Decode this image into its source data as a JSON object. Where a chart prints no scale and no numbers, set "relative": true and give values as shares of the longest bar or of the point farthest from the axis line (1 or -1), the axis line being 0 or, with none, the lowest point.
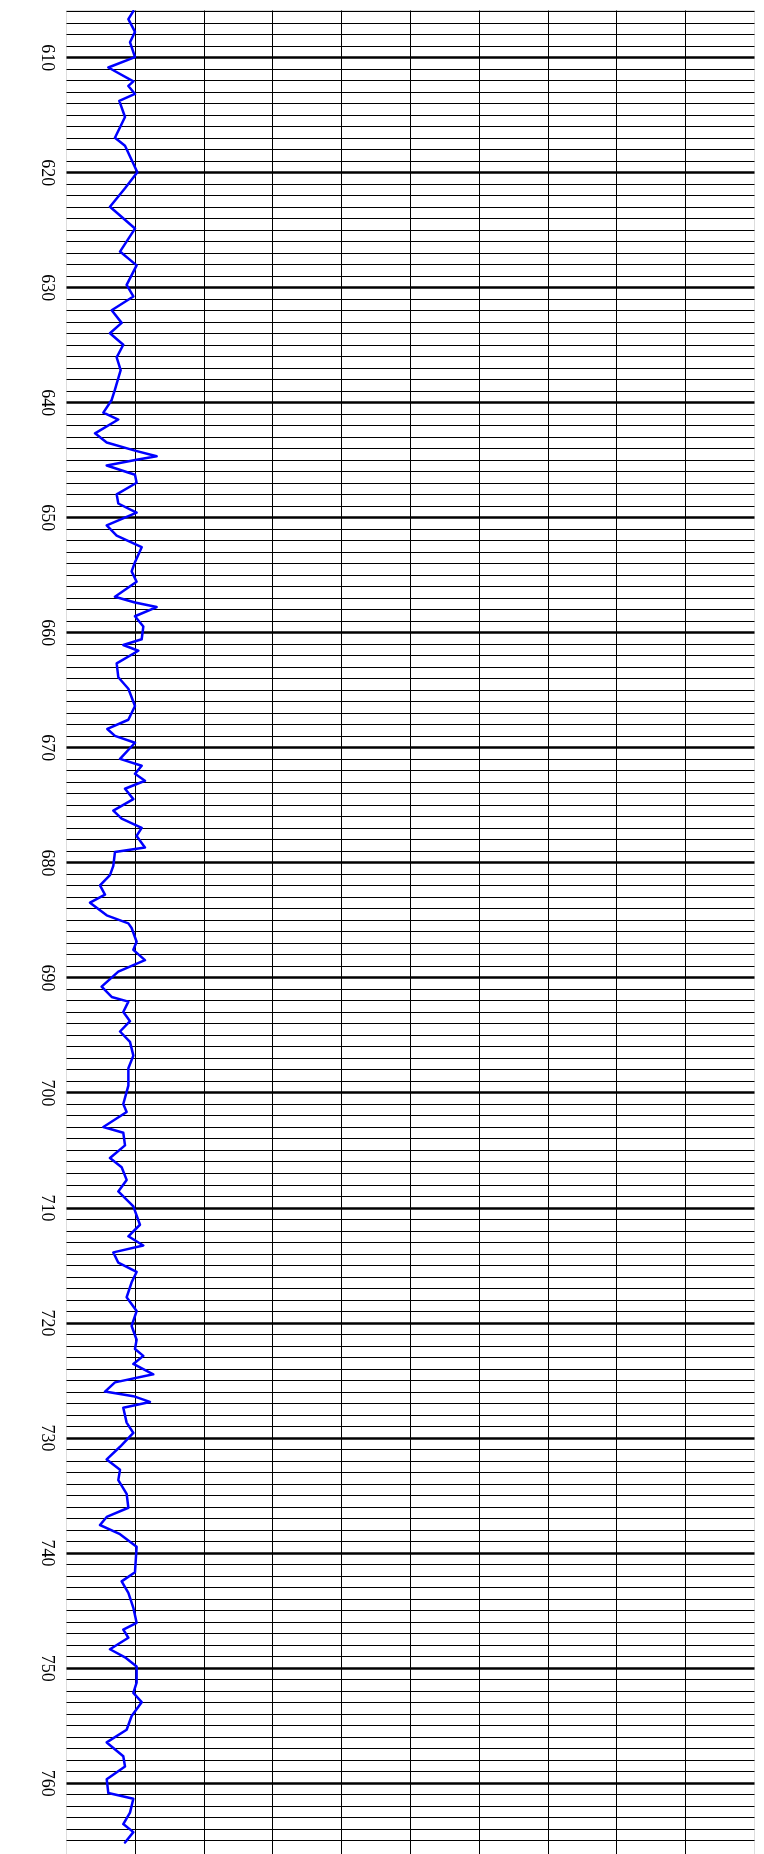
{
  "chart_data": {
    "type": "line",
    "orientation": "horizontal",
    "relative": true,
    "grid": true,
    "tick_labels": "y",
    "marker": "none",
    "line_style": "solid",
    "ylim": [
      766.2,
      605.9
    ],
    "yticks": [
      {
        "value": 606,
        "label": null
      },
      {
        "value": 607,
        "label": null
      },
      {
        "value": 608,
        "label": null
      },
      {
        "value": 609,
        "label": null
      },
      610,
      {
        "value": 611,
        "label": null
      },
      {
        "value": 612,
        "label": null
      },
      {
        "value": 613,
        "label": null
      },
      {
        "value": 614,
        "label": null
      },
      {
        "value": 615,
        "label": null
      },
      {
        "value": 616,
        "label": null
      },
      {
        "value": 617,
        "label": null
      },
      {
        "value": 618,
        "label": null
      },
      {
        "value": 619,
        "label": null
      },
      620,
      {
        "value": 621,
        "label": null
      },
      {
        "value": 622,
        "label": null
      },
      {
        "value": 623,
        "label": null
      },
      {
        "value": 624,
        "label": null
      },
      {
        "value": 625,
        "label": null
      },
      {
        "value": 626,
        "label": null
      },
      {
        "value": 627,
        "label": null
      },
      {
        "value": 628,
        "label": null
      },
      {
        "value": 629,
        "label": null
      },
      630,
      {
        "value": 631,
        "label": null
      },
      {
        "value": 632,
        "label": null
      },
      {
        "value": 633,
        "label": null
      },
      {
        "value": 634,
        "label": null
      },
      {
        "value": 635,
        "label": null
      },
      {
        "value": 636,
        "label": null
      },
      {
        "value": 637,
        "label": null
      },
      {
        "value": 638,
        "label": null
      },
      {
        "value": 639,
        "label": null
      },
      640,
      {
        "value": 641,
        "label": null
      },
      {
        "value": 642,
        "label": null
      },
      {
        "value": 643,
        "label": null
      },
      {
        "value": 644,
        "label": null
      },
      {
        "value": 645,
        "label": null
      },
      {
        "value": 646,
        "label": null
      },
      {
        "value": 647,
        "label": null
      },
      {
        "value": 648,
        "label": null
      },
      {
        "value": 649,
        "label": null
      },
      650,
      {
        "value": 651,
        "label": null
      },
      {
        "value": 652,
        "label": null
      },
      {
        "value": 653,
        "label": null
      },
      {
        "value": 654,
        "label": null
      },
      {
        "value": 655,
        "label": null
      },
      {
        "value": 656,
        "label": null
      },
      {
        "value": 657,
        "label": null
      },
      {
        "value": 658,
        "label": null
      },
      {
        "value": 659,
        "label": null
      },
      660,
      {
        "value": 661,
        "label": null
      },
      {
        "value": 662,
        "label": null
      },
      {
        "value": 663,
        "label": null
      },
      {
        "value": 664,
        "label": null
      },
      {
        "value": 665,
        "label": null
      },
      {
        "value": 666,
        "label": null
      },
      {
        "value": 667,
        "label": null
      },
      {
        "value": 668,
        "label": null
      },
      {
        "value": 669,
        "label": null
      },
      670,
      {
        "value": 671,
        "label": null
      },
      {
        "value": 672,
        "label": null
      },
      {
        "value": 673,
        "label": null
      },
      {
        "value": 674,
        "label": null
      },
      {
        "value": 675,
        "label": null
      },
      {
        "value": 676,
        "label": null
      },
      {
        "value": 677,
        "label": null
      },
      {
        "value": 678,
        "label": null
      },
      {
        "value": 679,
        "label": null
      },
      680,
      {
        "value": 681,
        "label": null
      },
      {
        "value": 682,
        "label": null
      },
      {
        "value": 683,
        "label": null
      },
      {
        "value": 684,
        "label": null
      },
      {
        "value": 685,
        "label": null
      },
      {
        "value": 686,
        "label": null
      },
      {
        "value": 687,
        "label": null
      },
      {
        "value": 688,
        "label": null
      },
      {
        "value": 689,
        "label": null
      },
      690,
      {
        "value": 691,
        "label": null
      },
      {
        "value": 692,
        "label": null
      },
      {
        "value": 693,
        "label": null
      },
      {
        "value": 694,
        "label": null
      },
      {
        "value": 695,
        "label": null
      },
      {
        "value": 696,
        "label": null
      },
      {
        "value": 697,
        "label": null
      },
      {
        "value": 698,
        "label": null
      },
      {
        "value": 699,
        "label": null
      },
      700,
      {
        "value": 701,
        "label": null
      },
      {
        "value": 702,
        "label": null
      },
      {
        "value": 703,
        "label": null
      },
      {
        "value": 704,
        "label": null
      },
      {
        "value": 705,
        "label": null
      },
      {
        "value": 706,
        "label": null
      },
      {
        "value": 707,
        "label": null
      },
      {
        "value": 708,
        "label": null
      },
      {
        "value": 709,
        "label": null
      },
      710,
      {
        "value": 711,
        "label": null
      },
      {
        "value": 712,
        "label": null
      },
      {
        "value": 713,
        "label": null
      },
      {
        "value": 714,
        "label": null
      },
      {
        "value": 715,
        "label": null
      },
      {
        "value": 716,
        "label": null
      },
      {
        "value": 717,
        "label": null
      },
      {
        "value": 718,
        "label": null
      },
      {
        "value": 719,
        "label": null
      },
      720,
      {
        "value": 721,
        "label": null
      },
      {
        "value": 722,
        "label": null
      },
      {
        "value": 723,
        "label": null
      },
      {
        "value": 724,
        "label": null
      },
      {
        "value": 725,
        "label": null
      },
      {
        "value": 726,
        "label": null
      },
      {
        "value": 727,
        "label": null
      },
      {
        "value": 728,
        "label": null
      },
      {
        "value": 729,
        "label": null
      },
      730,
      {
        "value": 731,
        "label": null
      },
      {
        "value": 732,
        "label": null
      },
      {
        "value": 733,
        "label": null
      },
      {
        "value": 734,
        "label": null
      },
      {
        "value": 735,
        "label": null
      },
      {
        "value": 736,
        "label": null
      },
      {
        "value": 737,
        "label": null
      },
      {
        "value": 738,
        "label": null
      },
      {
        "value": 739,
        "label": null
      },
      740,
      {
        "value": 741,
        "label": null
      },
      {
        "value": 742,
        "label": null
      },
      {
        "value": 743,
        "label": null
      },
      {
        "value": 744,
        "label": null
      },
      {
        "value": 745,
        "label": null
      },
      {
        "value": 746,
        "label": null
      },
      {
        "value": 747,
        "label": null
      },
      {
        "value": 748,
        "label": null
      },
      {
        "value": 749,
        "label": null
      },
      750,
      {
        "value": 751,
        "label": null
      },
      {
        "value": 752,
        "label": null
      },
      {
        "value": 753,
        "label": null
      },
      {
        "value": 754,
        "label": null
      },
      {
        "value": 755,
        "label": null
      },
      {
        "value": 756,
        "label": null
      },
      {
        "value": 757,
        "label": null
      },
      {
        "value": 758,
        "label": null
      },
      {
        "value": 759,
        "label": null
      },
      760,
      {
        "value": 761,
        "label": null
      },
      {
        "value": 762,
        "label": null
      },
      {
        "value": 763,
        "label": null
      },
      {
        "value": 764,
        "label": null
      },
      {
        "value": 765,
        "label": null
      }
    ],
    "series": [
      {
        "color": "#0000ff",
        "x": [
          606.0,
          606.7,
          607.8,
          608.7,
          610.0,
          610.9,
          612.1,
          612.5,
          613.2,
          613.8,
          615.2,
          617.0,
          617.7,
          620.0,
          621.4,
          623.0,
          624.9,
          626.9,
          628.1,
          629.8,
          630.8,
          632.0,
          633.1,
          634.0,
          635.0,
          636.1,
          637.2,
          638.9,
          639.8,
          640.9,
          641.5,
          642.7,
          643.5,
          644.2,
          644.7,
          645.0,
          645.5,
          646.3,
          647.0,
          648.0,
          648.8,
          649.6,
          650.7,
          651.6,
          652.6,
          653.9,
          654.7,
          655.6,
          656.9,
          657.4,
          657.8,
          658.6,
          659.5,
          660.6,
          661.1,
          661.6,
          662.7,
          663.9,
          664.9,
          666.4,
          667.6,
          668.4,
          669.0,
          669.6,
          671.0,
          671.6,
          672.3,
          672.9,
          673.6,
          674.5,
          675.5,
          676.2,
          677.0,
          677.7,
          678.7,
          679.1,
          680.3,
          681.1,
          682.0,
          682.8,
          683.5,
          684.6,
          685.3,
          685.7,
          686.9,
          687.6,
          688.5,
          689.5,
          690.8,
          691.7,
          692.1,
          693.0,
          693.8,
          694.7,
          695.6,
          696.8,
          697.9,
          699.4,
          701.0,
          701.7,
          703.0,
          703.5,
          704.6,
          705.7,
          706.5,
          707.6,
          708.6,
          709.9,
          711.5,
          712.5,
          713.3,
          713.9,
          714.8,
          715.6,
          716.5,
          717.8,
          719.0,
          720.3,
          721.5,
          722.3,
          722.9,
          723.6,
          724.5,
          725.2,
          726.0,
          726.4,
          726.9,
          727.4,
          728.7,
          729.6,
          730.8,
          731.9,
          732.8,
          733.7,
          734.9,
          736.1,
          736.9,
          737.6,
          738.4,
          739.5,
          741.7,
          742.5,
          743.5,
          744.8,
          746.1,
          746.7,
          747.4,
          748.4,
          749.1,
          749.9,
          751.3,
          752.2,
          753.0,
          754.2,
          755.4,
          756.5,
          757.7,
          758.6,
          759.7,
          760.9,
          761.4,
          762.6,
          763.6,
          764.3,
          765.2
        ],
        "values": [
          0.743,
          0.688,
          0.761,
          0.706,
          0.761,
          0.467,
          0.743,
          0.688,
          0.761,
          0.588,
          0.651,
          0.54,
          0.651,
          0.787,
          0.651,
          0.485,
          0.761,
          0.596,
          0.779,
          0.669,
          0.743,
          0.504,
          0.614,
          0.485,
          0.632,
          0.559,
          0.603,
          0.54,
          0.504,
          0.412,
          0.577,
          0.32,
          0.449,
          0.761,
          1.0,
          0.779,
          0.449,
          0.761,
          0.779,
          0.559,
          0.577,
          0.779,
          0.449,
          0.559,
          0.835,
          0.761,
          0.724,
          0.779,
          0.54,
          0.761,
          1.0,
          0.761,
          0.853,
          0.835,
          0.632,
          0.798,
          0.559,
          0.577,
          0.688,
          0.761,
          0.688,
          0.456,
          0.54,
          0.761,
          0.596,
          0.835,
          0.761,
          0.871,
          0.651,
          0.743,
          0.522,
          0.614,
          0.835,
          0.779,
          0.871,
          0.54,
          0.522,
          0.485,
          0.375,
          0.43,
          0.265,
          0.449,
          0.688,
          0.724,
          0.779,
          0.743,
          0.871,
          0.577,
          0.393,
          0.504,
          0.688,
          0.632,
          0.706,
          0.596,
          0.706,
          0.743,
          0.688,
          0.688,
          0.632,
          0.669,
          0.412,
          0.632,
          0.651,
          0.485,
          0.614,
          0.669,
          0.577,
          0.743,
          0.816,
          0.688,
          0.853,
          0.522,
          0.577,
          0.779,
          0.724,
          0.669,
          0.779,
          0.724,
          0.779,
          0.761,
          0.853,
          0.743,
          0.963,
          0.54,
          0.43,
          0.743,
          0.926,
          0.632,
          0.669,
          0.743,
          0.596,
          0.449,
          0.596,
          0.577,
          0.669,
          0.688,
          0.449,
          0.375,
          0.596,
          0.779,
          0.761,
          0.614,
          0.688,
          0.743,
          0.779,
          0.632,
          0.688,
          0.485,
          0.651,
          0.779,
          0.779,
          0.743,
          0.835,
          0.724,
          0.669,
          0.449,
          0.632,
          0.651,
          0.449,
          0.467,
          0.743,
          0.706,
          0.632,
          0.743,
          0.651
        ]
      }
    ]
  }
}
